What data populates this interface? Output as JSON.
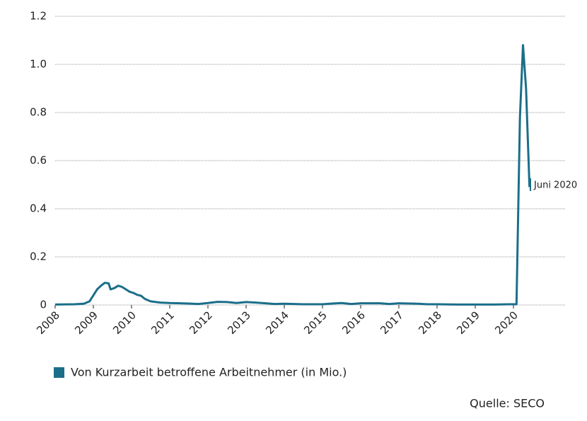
{
  "chart_data": {
    "type": "line",
    "x": [
      2008.0,
      2008.5,
      2008.75,
      2008.9,
      2009.0,
      2009.1,
      2009.2,
      2009.3,
      2009.4,
      2009.45,
      2009.55,
      2009.65,
      2009.75,
      2009.85,
      2009.95,
      2010.05,
      2010.15,
      2010.25,
      2010.35,
      2010.5,
      2010.75,
      2011.0,
      2011.5,
      2011.75,
      2012.0,
      2012.25,
      2012.5,
      2012.75,
      2013.0,
      2013.25,
      2013.5,
      2013.75,
      2014.0,
      2014.5,
      2015.0,
      2015.25,
      2015.5,
      2015.75,
      2016.0,
      2016.5,
      2016.75,
      2017.0,
      2017.5,
      2017.75,
      2018.0,
      2018.5,
      2019.0,
      2019.5,
      2019.9,
      2020.08,
      2020.17,
      2020.25,
      2020.33,
      2020.42
    ],
    "series": [
      {
        "name": "Von Kurzarbeit betroffene Arbeitnehmer (in Mio.)",
        "color": "#1b6e8a",
        "values": [
          0.002,
          0.003,
          0.005,
          0.015,
          0.04,
          0.065,
          0.08,
          0.092,
          0.09,
          0.065,
          0.07,
          0.08,
          0.075,
          0.065,
          0.055,
          0.05,
          0.042,
          0.038,
          0.025,
          0.015,
          0.01,
          0.008,
          0.006,
          0.004,
          0.008,
          0.013,
          0.012,
          0.008,
          0.012,
          0.01,
          0.007,
          0.004,
          0.005,
          0.003,
          0.003,
          0.006,
          0.008,
          0.004,
          0.007,
          0.007,
          0.004,
          0.007,
          0.005,
          0.003,
          0.003,
          0.002,
          0.002,
          0.002,
          0.003,
          0.003,
          0.78,
          1.08,
          0.9,
          0.49
        ]
      }
    ],
    "xlim": [
      2008,
      2020.75
    ],
    "xticks": [
      2008,
      2009,
      2010,
      2011,
      2012,
      2013,
      2014,
      2015,
      2016,
      2017,
      2018,
      2019,
      2020
    ],
    "ylim": [
      0,
      1.2
    ],
    "yticks": [
      0,
      0.2,
      0.4,
      0.6,
      0.8,
      {
        "value": 1,
        "label": "1.0"
      },
      1.2
    ],
    "grid": true,
    "annotation": "Juni 2020",
    "source": "Quelle: SECO"
  }
}
